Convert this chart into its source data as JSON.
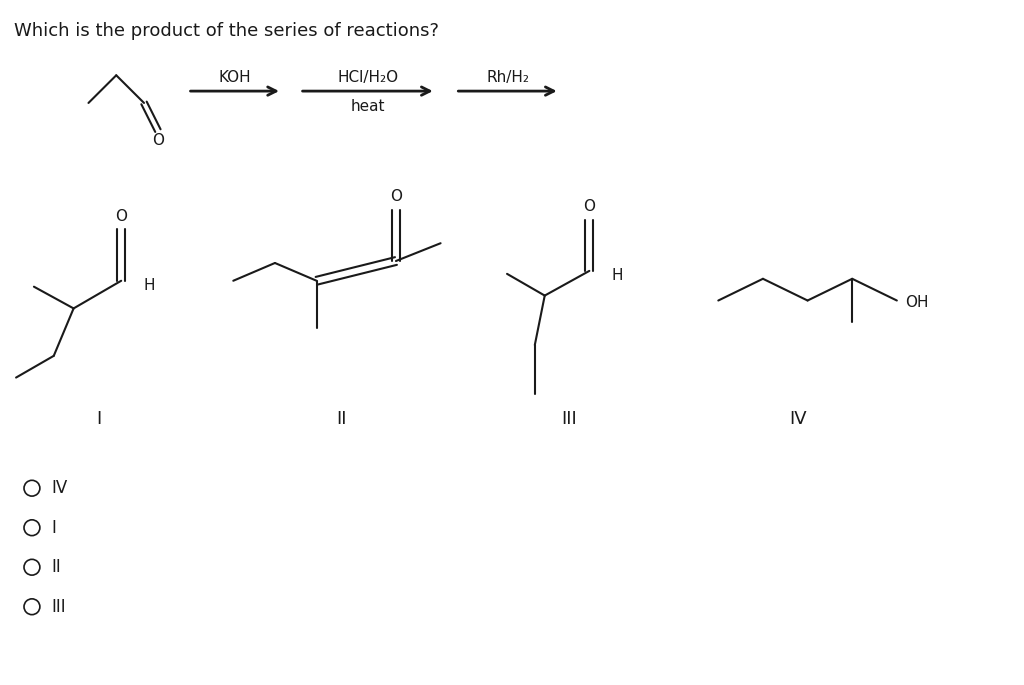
{
  "title": "Which is the product of the series of reactions?",
  "title_fontsize": 13,
  "background_color": "#ffffff",
  "text_color": "#1a1a1a",
  "arrow1_label_top": "KOH",
  "arrow2_label_top": "HCl/H₂O",
  "arrow2_label_bot": "heat",
  "arrow3_label_top": "Rh/H₂",
  "label_I": "I",
  "label_II": "II",
  "label_III": "III",
  "label_IV": "IV",
  "options": [
    "IV",
    "I",
    "II",
    "III"
  ],
  "line_color": "#1a1a1a",
  "line_width": 1.5,
  "font_family": "DejaVu Sans"
}
